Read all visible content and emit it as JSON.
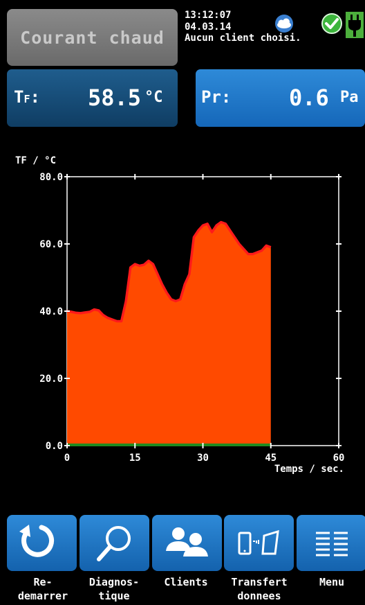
{
  "header": {
    "mode_label": "Courant chaud",
    "time": "13:12:07",
    "date": "04.03.14",
    "client_status": "Aucun client choisi."
  },
  "icons": [
    "cloud-icon",
    "check-icon",
    "plug-icon"
  ],
  "tiles": {
    "tf": {
      "label_main": "T",
      "label_sub": "F",
      "label_colon": ":",
      "value": "58.5",
      "unit": "°C"
    },
    "pr": {
      "label": "Pr:",
      "value": "0.6",
      "unit": "Pa"
    }
  },
  "chart_data": {
    "type": "area",
    "ylabel": "TF / °C",
    "xlabel": "Temps / sec.",
    "xlim": [
      0,
      60
    ],
    "ylim": [
      0,
      80
    ],
    "x_ticks": [
      "0",
      "15",
      "30",
      "45",
      "60"
    ],
    "y_ticks": [
      "0.0",
      "20.0",
      "40.0",
      "60.0",
      "80.0"
    ],
    "fill_color": "#ff4a00",
    "line_color": "#ff1a1a",
    "baseline_color": "#1f8a1f",
    "series": [
      {
        "x": [
          0,
          1,
          2,
          3,
          4,
          5,
          6,
          7,
          8,
          9,
          10,
          11,
          12,
          13,
          14,
          15,
          16,
          17,
          18,
          19,
          20,
          21,
          22,
          23,
          24,
          25,
          26,
          27,
          28,
          29,
          30,
          31,
          32,
          33,
          34,
          35,
          36,
          37,
          38,
          39,
          40,
          41,
          42,
          43,
          44,
          45
        ],
        "y": [
          40,
          39.8,
          39.5,
          39.4,
          39.6,
          39.8,
          40.5,
          40.2,
          38.8,
          38,
          37.5,
          37,
          37,
          43,
          53,
          54,
          53.5,
          53.8,
          55,
          54,
          51,
          48,
          45.5,
          43.5,
          43,
          43.5,
          48,
          51,
          62,
          64,
          65.5,
          66,
          63.5,
          65.5,
          66.5,
          66,
          64,
          62,
          60,
          58.5,
          57,
          57,
          57.5,
          58,
          59.5,
          59
        ]
      }
    ]
  },
  "bottom_bar": [
    {
      "name": "redemarrer",
      "line1": "Re-",
      "line2": "demarrer"
    },
    {
      "name": "diagnostique",
      "line1": "Diagnos-",
      "line2": "tique"
    },
    {
      "name": "clients",
      "line1": "Clients",
      "line2": ""
    },
    {
      "name": "transfert",
      "line1": "Transfert",
      "line2": "donnees"
    },
    {
      "name": "menu",
      "line1": "Menu",
      "line2": ""
    }
  ]
}
